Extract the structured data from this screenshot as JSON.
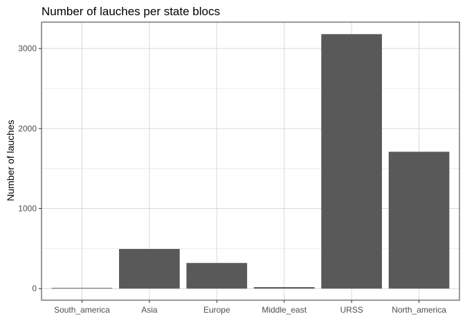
{
  "chart_data": {
    "type": "bar",
    "title": "Number of lauches per state blocs",
    "xlabel": "",
    "ylabel": "Number of lauches",
    "categories": [
      "South_america",
      "Asia",
      "Europe",
      "Middle_east",
      "URSS",
      "North_america"
    ],
    "values": [
      8,
      495,
      320,
      18,
      3180,
      1710
    ],
    "ylim": [
      -145,
      3330
    ],
    "yticks": [
      0,
      1000,
      2000,
      3000
    ],
    "yticklabels": [
      "0",
      "1000",
      "2000",
      "3000"
    ],
    "grid": true,
    "legend": "none",
    "colors": {
      "bar": "#595959",
      "panel_border": "#333333",
      "grid_major": "#d9d9d9",
      "grid_minor": "#ececec",
      "tick_text": "#4d4d4d",
      "background": "#ffffff"
    }
  }
}
